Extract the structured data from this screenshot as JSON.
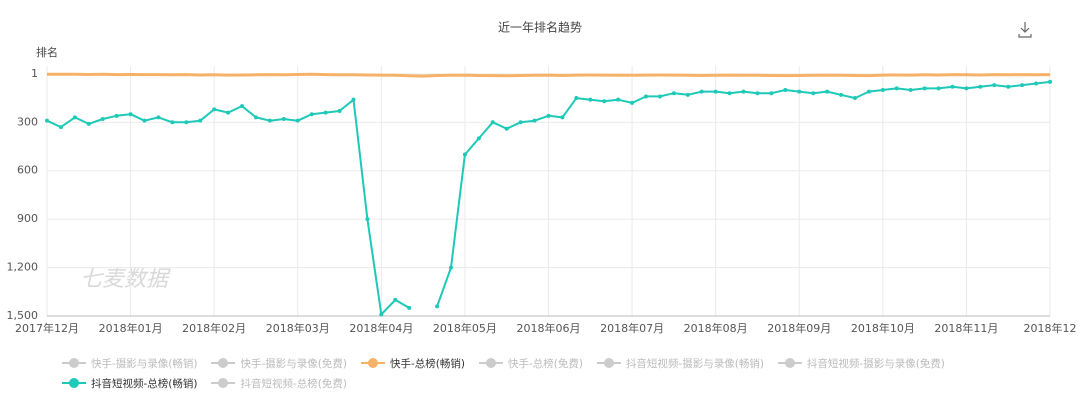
{
  "chart_data": {
    "type": "line",
    "title": "近一年排名趋势",
    "y_label": "排名",
    "watermark": "七麦数据",
    "y_inverted": true,
    "grid": true,
    "ylim": [
      1,
      1500
    ],
    "yticks": [
      1,
      300,
      600,
      900,
      {
        "value": 1200,
        "label": "1,200"
      },
      {
        "value": 1500,
        "label": "1,500"
      }
    ],
    "categories": [
      "2017年12月",
      null,
      null,
      null,
      null,
      null,
      "2018年01月",
      null,
      null,
      null,
      null,
      null,
      "2018年02月",
      null,
      null,
      null,
      null,
      null,
      "2018年03月",
      null,
      null,
      null,
      null,
      null,
      "2018年04月",
      null,
      null,
      null,
      null,
      null,
      "2018年05月",
      null,
      null,
      null,
      null,
      null,
      "2018年06月",
      null,
      null,
      null,
      null,
      null,
      "2018年07月",
      null,
      null,
      null,
      null,
      null,
      "2018年08月",
      null,
      null,
      null,
      null,
      null,
      "2018年09月",
      null,
      null,
      null,
      null,
      null,
      "2018年10月",
      null,
      null,
      null,
      null,
      null,
      "2018年11月",
      null,
      null,
      null,
      null,
      null,
      "2018年12"
    ],
    "series": [
      {
        "name": "快手-摄影与录像(畅销)",
        "color": "#cccccc",
        "hidden": true
      },
      {
        "name": "快手-摄影与录像(免费)",
        "color": "#cccccc",
        "hidden": true
      },
      {
        "name": "快手-总榜(畅销)",
        "color": "#f7b26a",
        "markers": false,
        "values": [
          2,
          3,
          3,
          4,
          3,
          5,
          4,
          5,
          5,
          6,
          5,
          7,
          6,
          8,
          7,
          6,
          5,
          6,
          4,
          3,
          5,
          6,
          6,
          7,
          8,
          9,
          12,
          14,
          10,
          9,
          8,
          10,
          11,
          12,
          10,
          9,
          8,
          10,
          8,
          7,
          8,
          9,
          9,
          8,
          7,
          8,
          9,
          10,
          9,
          8,
          9,
          9,
          10,
          11,
          10,
          9,
          8,
          9,
          10,
          11,
          8,
          7,
          8,
          6,
          7,
          5,
          6,
          7,
          5,
          6,
          5,
          6,
          5
        ]
      },
      {
        "name": "快手-总榜(免费)",
        "color": "#cccccc",
        "hidden": true
      },
      {
        "name": "抖音短视频-摄影与录像(畅销)",
        "color": "#cccccc",
        "hidden": true
      },
      {
        "name": "抖音短视频-摄影与录像(免费)",
        "color": "#cccccc",
        "hidden": true
      },
      {
        "name": "抖音短视频-总榜(畅销)",
        "color": "#1ec9b7",
        "markers": true,
        "values": [
          290,
          330,
          270,
          310,
          280,
          260,
          250,
          290,
          270,
          300,
          300,
          290,
          220,
          240,
          200,
          270,
          290,
          280,
          290,
          250,
          240,
          230,
          160,
          900,
          1490,
          1400,
          1450,
          null,
          1440,
          1200,
          500,
          400,
          300,
          340,
          300,
          290,
          260,
          270,
          150,
          160,
          170,
          160,
          180,
          140,
          140,
          120,
          130,
          110,
          110,
          120,
          110,
          120,
          120,
          100,
          110,
          120,
          110,
          130,
          150,
          110,
          100,
          90,
          100,
          90,
          90,
          80,
          90,
          80,
          70,
          80,
          70,
          60,
          50
        ]
      },
      {
        "name": "抖音短视频-总榜(免费)",
        "color": "#cccccc",
        "hidden": true
      }
    ]
  }
}
